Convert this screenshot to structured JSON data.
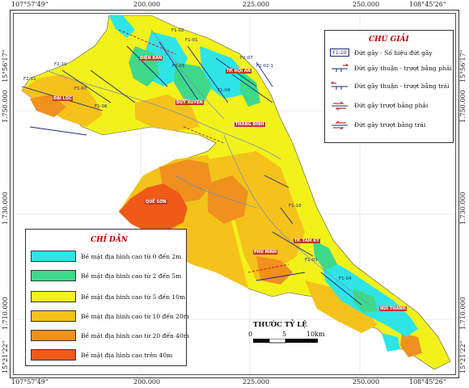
{
  "map": {
    "coords": {
      "top_left": "107°57'49\"",
      "top_right": "108°45'26\"",
      "bottom_left": "107°57'49\"",
      "bottom_right": "108°45'26\"",
      "left_top": "15°56'17\"",
      "left_bottom": "15°21'22\"",
      "right_top": "15°56'17\"",
      "right_bottom": "15°21'22\"",
      "x_ticks": [
        "200.000",
        "225.000",
        "250.000"
      ],
      "y_ticks": [
        "1.750.000",
        "1.730.000",
        "1.710.000"
      ]
    },
    "fault_legend": {
      "title": "CHÚ GIẢI",
      "items": [
        {
          "symbol": "F1-10",
          "label": "Đứt gãy - Số hiệu đứt gãy"
        },
        {
          "symbol": "thrust-right",
          "label": "Đứt gãy thuận - trượt bằng phải"
        },
        {
          "symbol": "thrust-left",
          "label": "Đứt gãy thuận - trượt bằng trái"
        },
        {
          "symbol": "strike-right",
          "label": "Đứt gãy trượt bằng phải"
        },
        {
          "symbol": "strike-left",
          "label": "Đứt gãy trượt bằng trái"
        }
      ]
    },
    "elevation_legend": {
      "title": "CHỈ DẪN",
      "items": [
        {
          "label": "Bề mặt địa hình cao từ 0 đến 2m",
          "color": "#2fe4e4"
        },
        {
          "label": "Bề mặt địa hình cao từ 2 đến 5m",
          "color": "#3fd98a"
        },
        {
          "label": "Bề mặt địa hình cao từ 5 đến 10m",
          "color": "#f2f21a"
        },
        {
          "label": "Bề mặt địa hình cao từ 10 đến 20m",
          "color": "#f5c21b"
        },
        {
          "label": "Bề mặt địa hình cao từ 20 đến 40m",
          "color": "#f0901e"
        },
        {
          "label": "Bề mặt địa hình cao trên 40m",
          "color": "#f05a18"
        }
      ]
    },
    "scale": {
      "title": "THƯỚC TỶ LỆ",
      "labels": [
        "0",
        "5",
        "10km"
      ]
    },
    "places": [
      "ĐIỆN BÀN",
      "TP. HỘI AN",
      "ĐẠI LỘC",
      "DUY XUYÊN",
      "THĂNG BÌNH",
      "QUẾ SƠN",
      "TP. TAM KỲ",
      "PHÚ NINH",
      "NÚI THÀNH"
    ],
    "fault_ids": [
      "F2-11",
      "F2-10",
      "F1-02",
      "F1-01",
      "F1-05",
      "F1-07",
      "F1-10",
      "F1-04",
      "F2-07",
      "F1-06",
      "F1-03",
      "F1-02-1",
      "F1-04"
    ]
  }
}
